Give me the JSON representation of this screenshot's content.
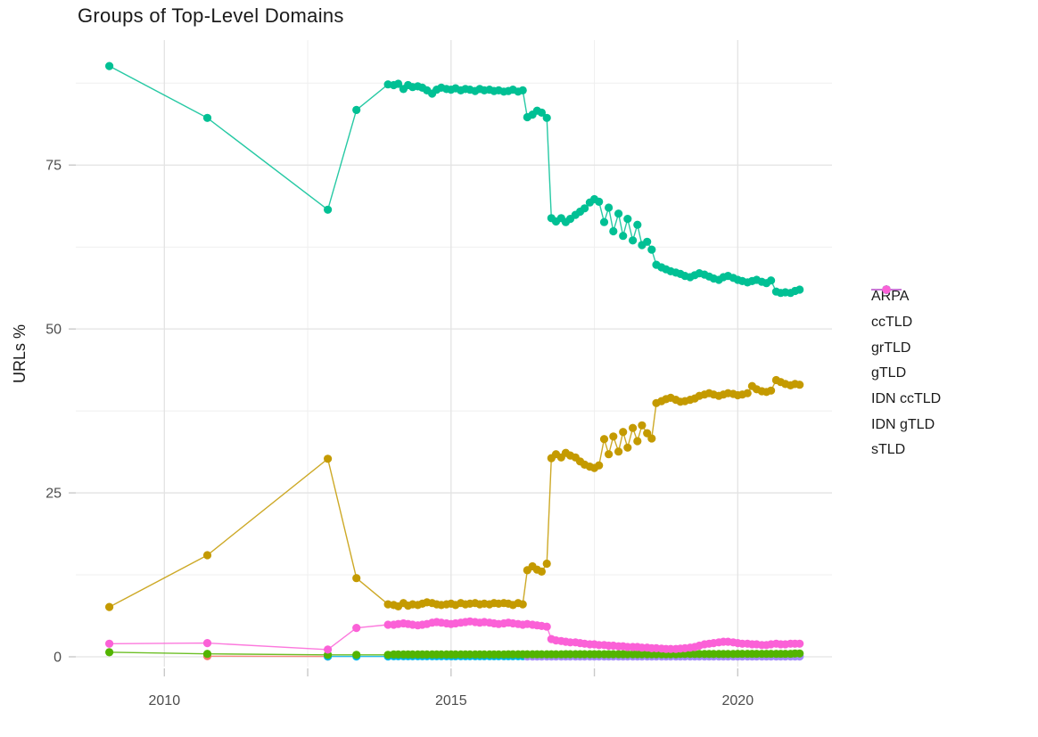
{
  "title": "Groups of Top-Level Domains",
  "chart_data": {
    "type": "line",
    "title": "Groups of Top-Level Domains",
    "xlabel": "",
    "ylabel": "URLs %",
    "grid": true,
    "legend_position": "right",
    "x_ticks_labeled": [
      2010,
      2015,
      2020
    ],
    "x_axis_labels": [
      "2010",
      "2015",
      "2020"
    ],
    "x_ticks_minor": [
      2012.5,
      2017.5
    ],
    "y_ticks": [
      0,
      25,
      50,
      75
    ],
    "y_axis_labels": [
      "0",
      "25",
      "50",
      "75"
    ],
    "y_ticks_minor": [
      12.5,
      37.5,
      62.5,
      87.5
    ],
    "xlim": [
      2008.45,
      2021.75
    ],
    "ylim": [
      -3.9,
      94.3
    ],
    "colors": {
      "grid_major": "#E3E3E3",
      "grid_minor": "#EFEFEF",
      "tick": "#C9C9C9",
      "tick_label": "#4d4d4d",
      "text": "#1a1a1a",
      "background": "#ffffff"
    },
    "draw_order": [
      "ARPA",
      "IDN ccTLD",
      "IDN gTLD",
      "grTLD",
      "sTLD",
      "ccTLD",
      "gTLD"
    ],
    "x": [
      2009.04,
      2010.75,
      2012.85,
      2013.35,
      2013.9,
      2014.0,
      2014.08,
      2014.17,
      2014.25,
      2014.33,
      2014.42,
      2014.5,
      2014.58,
      2014.67,
      2014.75,
      2014.83,
      2014.92,
      2015.0,
      2015.08,
      2015.17,
      2015.25,
      2015.33,
      2015.42,
      2015.5,
      2015.58,
      2015.67,
      2015.75,
      2015.83,
      2015.92,
      2016.0,
      2016.08,
      2016.17,
      2016.25,
      2016.33,
      2016.42,
      2016.5,
      2016.58,
      2016.67,
      2016.75,
      2016.83,
      2016.92,
      2017.0,
      2017.08,
      2017.17,
      2017.25,
      2017.33,
      2017.42,
      2017.5,
      2017.58,
      2017.67,
      2017.75,
      2017.83,
      2017.92,
      2018.0,
      2018.08,
      2018.17,
      2018.25,
      2018.33,
      2018.42,
      2018.5,
      2018.58,
      2018.67,
      2018.75,
      2018.83,
      2018.92,
      2019.0,
      2019.08,
      2019.17,
      2019.25,
      2019.33,
      2019.42,
      2019.5,
      2019.58,
      2019.67,
      2019.75,
      2019.83,
      2019.92,
      2020.0,
      2020.08,
      2020.17,
      2020.25,
      2020.33,
      2020.42,
      2020.5,
      2020.58,
      2020.67,
      2020.75,
      2020.83,
      2020.92,
      2021.0,
      2021.08
    ],
    "series": [
      {
        "name": "ARPA",
        "color": "#F8766D",
        "y": [
          null,
          0.1,
          0.05,
          null,
          null,
          null,
          null,
          null,
          null,
          null,
          null,
          null,
          null,
          null,
          null,
          null,
          null,
          null,
          null,
          null,
          null,
          null,
          null,
          null,
          null,
          null,
          null,
          null,
          null,
          null,
          null,
          null,
          null,
          null,
          null,
          null,
          null,
          null,
          null,
          null,
          null,
          null,
          null,
          null,
          null,
          null,
          null,
          null,
          null,
          null,
          null,
          null,
          null,
          null,
          null,
          null,
          null,
          null,
          null,
          null,
          null,
          null,
          null,
          null,
          null,
          null,
          null,
          null,
          null,
          null,
          null,
          null,
          null,
          null,
          null,
          null,
          null,
          null,
          null,
          null,
          null,
          null,
          null,
          null,
          null,
          null,
          null,
          null,
          null,
          null,
          null
        ]
      },
      {
        "name": "ccTLD",
        "color": "#C49A00",
        "y": [
          7.6,
          15.5,
          30.2,
          12.0,
          8.0,
          7.9,
          7.7,
          8.2,
          7.8,
          8.0,
          7.9,
          8.1,
          8.3,
          8.2,
          8.0,
          7.9,
          8.0,
          8.1,
          7.9,
          8.2,
          8.0,
          8.1,
          8.2,
          8.0,
          8.1,
          8.0,
          8.2,
          8.1,
          8.2,
          8.1,
          7.9,
          8.2,
          8.0,
          13.2,
          13.8,
          13.3,
          13.0,
          14.2,
          30.3,
          30.9,
          30.4,
          31.1,
          30.7,
          30.4,
          29.8,
          29.3,
          29.0,
          28.8,
          29.2,
          33.2,
          30.9,
          33.6,
          31.3,
          34.3,
          31.9,
          34.9,
          32.9,
          35.3,
          34.1,
          33.3,
          38.7,
          39.0,
          39.3,
          39.5,
          39.2,
          38.9,
          39.0,
          39.2,
          39.4,
          39.8,
          40.0,
          40.2,
          40.0,
          39.8,
          40.0,
          40.2,
          40.1,
          39.9,
          40.0,
          40.2,
          41.3,
          40.8,
          40.5,
          40.4,
          40.6,
          42.2,
          41.9,
          41.6,
          41.4,
          41.6,
          41.5
        ]
      },
      {
        "name": "grTLD",
        "color": "#53B400",
        "y": [
          0.7,
          0.45,
          0.3,
          0.3,
          0.3,
          0.35,
          0.35,
          0.35,
          0.35,
          0.35,
          0.35,
          0.35,
          0.35,
          0.35,
          0.35,
          0.35,
          0.35,
          0.35,
          0.35,
          0.35,
          0.35,
          0.35,
          0.35,
          0.35,
          0.35,
          0.35,
          0.35,
          0.35,
          0.35,
          0.38,
          0.38,
          0.38,
          0.38,
          0.38,
          0.38,
          0.38,
          0.38,
          0.38,
          0.38,
          0.38,
          0.38,
          0.4,
          0.4,
          0.4,
          0.4,
          0.4,
          0.4,
          0.4,
          0.4,
          0.4,
          0.4,
          0.4,
          0.4,
          0.4,
          0.4,
          0.4,
          0.4,
          0.4,
          0.4,
          0.4,
          0.4,
          0.4,
          0.4,
          0.4,
          0.4,
          0.42,
          0.42,
          0.42,
          0.42,
          0.42,
          0.42,
          0.42,
          0.42,
          0.42,
          0.42,
          0.42,
          0.42,
          0.45,
          0.45,
          0.45,
          0.45,
          0.45,
          0.45,
          0.45,
          0.45,
          0.45,
          0.45,
          0.45,
          0.45,
          0.5,
          0.5
        ]
      },
      {
        "name": "gTLD",
        "color": "#00C094",
        "y": [
          90.1,
          82.2,
          68.2,
          83.4,
          87.3,
          87.2,
          87.4,
          86.6,
          87.2,
          86.9,
          87.0,
          86.8,
          86.4,
          85.9,
          86.5,
          86.8,
          86.6,
          86.5,
          86.7,
          86.4,
          86.6,
          86.5,
          86.3,
          86.6,
          86.4,
          86.5,
          86.3,
          86.4,
          86.2,
          86.3,
          86.5,
          86.2,
          86.4,
          82.3,
          82.7,
          83.3,
          83.0,
          82.2,
          66.9,
          66.4,
          66.9,
          66.3,
          66.8,
          67.4,
          67.9,
          68.4,
          69.3,
          69.8,
          69.4,
          66.3,
          68.5,
          64.9,
          67.6,
          64.2,
          66.8,
          63.5,
          65.9,
          62.8,
          63.3,
          62.1,
          59.8,
          59.4,
          59.1,
          58.8,
          58.6,
          58.4,
          58.1,
          57.9,
          58.2,
          58.5,
          58.3,
          58.0,
          57.7,
          57.5,
          57.9,
          58.1,
          57.8,
          57.5,
          57.3,
          57.1,
          57.3,
          57.5,
          57.2,
          57.0,
          57.4,
          55.7,
          55.5,
          55.6,
          55.5,
          55.8,
          56.0
        ]
      },
      {
        "name": "IDN ccTLD",
        "color": "#00B6EB",
        "y": [
          null,
          null,
          0.05,
          0.05,
          0.05,
          0.08,
          0.08,
          0.08,
          0.08,
          0.08,
          0.08,
          0.08,
          0.08,
          0.08,
          0.08,
          0.08,
          0.08,
          0.08,
          0.08,
          0.08,
          0.08,
          0.08,
          0.08,
          0.08,
          0.08,
          0.08,
          0.08,
          0.08,
          0.08,
          0.08,
          0.08,
          0.08,
          0.08,
          0.08,
          0.08,
          0.08,
          0.08,
          0.08,
          0.08,
          0.08,
          0.08,
          0.08,
          0.08,
          0.08,
          0.08,
          0.08,
          0.08,
          0.08,
          0.08,
          0.08,
          0.08,
          0.08,
          0.08,
          0.08,
          0.08,
          0.08,
          0.08,
          0.08,
          0.08,
          0.08,
          0.08,
          0.08,
          0.08,
          0.08,
          0.08,
          0.08,
          0.08,
          0.08,
          0.08,
          0.08,
          0.08,
          0.08,
          0.08,
          0.08,
          0.08,
          0.08,
          0.08,
          0.08,
          0.08,
          0.08,
          0.08,
          0.08,
          0.08,
          0.08,
          0.08,
          0.08,
          0.08,
          0.08,
          0.08,
          0.08,
          0.08
        ]
      },
      {
        "name": "IDN gTLD",
        "color": "#A58AFF",
        "y": [
          null,
          null,
          null,
          null,
          null,
          null,
          null,
          null,
          null,
          null,
          null,
          null,
          null,
          null,
          null,
          null,
          null,
          null,
          null,
          null,
          null,
          null,
          null,
          null,
          null,
          null,
          null,
          null,
          null,
          null,
          null,
          null,
          null,
          0.05,
          0.05,
          0.05,
          0.05,
          0.05,
          0.05,
          0.05,
          0.05,
          0.05,
          0.05,
          0.05,
          0.05,
          0.05,
          0.05,
          0.05,
          0.05,
          0.05,
          0.05,
          0.05,
          0.05,
          0.05,
          0.05,
          0.05,
          0.05,
          0.05,
          0.05,
          0.05,
          0.05,
          0.05,
          0.05,
          0.05,
          0.05,
          0.05,
          0.05,
          0.05,
          0.05,
          0.05,
          0.05,
          0.05,
          0.05,
          0.05,
          0.05,
          0.05,
          0.05,
          0.05,
          0.05,
          0.05,
          0.05,
          0.05,
          0.05,
          0.05,
          0.05,
          0.05,
          0.05,
          0.05,
          0.05,
          0.05,
          0.05
        ]
      },
      {
        "name": "sTLD",
        "color": "#FB61D7",
        "y": [
          2.0,
          2.1,
          1.1,
          4.4,
          4.9,
          4.9,
          5.0,
          5.1,
          5.0,
          4.9,
          4.8,
          4.9,
          5.0,
          5.2,
          5.3,
          5.2,
          5.1,
          5.0,
          5.1,
          5.2,
          5.3,
          5.4,
          5.3,
          5.2,
          5.3,
          5.2,
          5.1,
          5.0,
          5.1,
          5.2,
          5.1,
          5.0,
          4.9,
          5.0,
          4.9,
          4.8,
          4.7,
          4.6,
          2.7,
          2.5,
          2.4,
          2.3,
          2.2,
          2.2,
          2.1,
          2.0,
          1.9,
          1.9,
          1.8,
          1.8,
          1.7,
          1.7,
          1.6,
          1.6,
          1.5,
          1.5,
          1.5,
          1.4,
          1.4,
          1.3,
          1.3,
          1.25,
          1.2,
          1.2,
          1.2,
          1.25,
          1.3,
          1.4,
          1.5,
          1.7,
          1.9,
          2.0,
          2.1,
          2.2,
          2.3,
          2.3,
          2.2,
          2.1,
          2.0,
          2.0,
          1.9,
          1.9,
          1.8,
          1.8,
          1.9,
          2.0,
          1.9,
          1.9,
          2.0,
          2.0,
          2.0
        ]
      }
    ]
  }
}
